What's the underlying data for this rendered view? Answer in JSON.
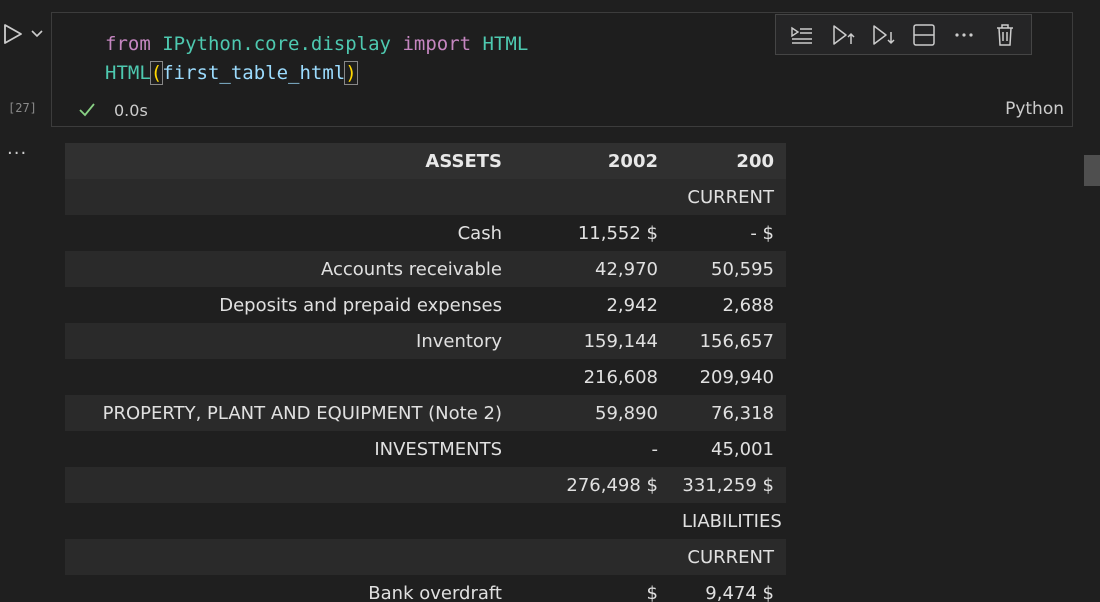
{
  "cell": {
    "execution_count": "[27]",
    "code_line1": {
      "kw1": "from",
      "module": "IPython.core.display",
      "kw2": "import",
      "name": "HTML"
    },
    "code_line2": {
      "func": "HTML",
      "open": "(",
      "arg": "first_table_html",
      "close": ")"
    },
    "elapsed": "0.0s",
    "language": "Python"
  },
  "output": {
    "more": "···",
    "table": {
      "headers": [
        "ASSETS",
        "2002",
        "200"
      ],
      "rows": [
        [
          "",
          "",
          "CURRENT"
        ],
        [
          "Cash",
          "11,552 $",
          "- $"
        ],
        [
          "Accounts receivable",
          "42,970",
          "50,595"
        ],
        [
          "Deposits and prepaid expenses",
          "2,942",
          "2,688"
        ],
        [
          "Inventory",
          "159,144",
          "156,657"
        ],
        [
          "",
          "216,608",
          "209,940"
        ],
        [
          "PROPERTY, PLANT AND EQUIPMENT (Note 2)",
          "59,890",
          "76,318"
        ],
        [
          "INVESTMENTS",
          "-",
          "45,001"
        ],
        [
          "",
          "276,498 $",
          "331,259 $"
        ],
        [
          "",
          "",
          "LIABILITIES"
        ],
        [
          "",
          "",
          "CURRENT"
        ],
        [
          "Bank overdraft",
          "$",
          "9,474 $"
        ]
      ]
    }
  },
  "colors": {
    "check": "#89d185",
    "header_bg": "#303030",
    "row_odd": "#2a2a2a",
    "row_even": "#1f1f1f"
  }
}
